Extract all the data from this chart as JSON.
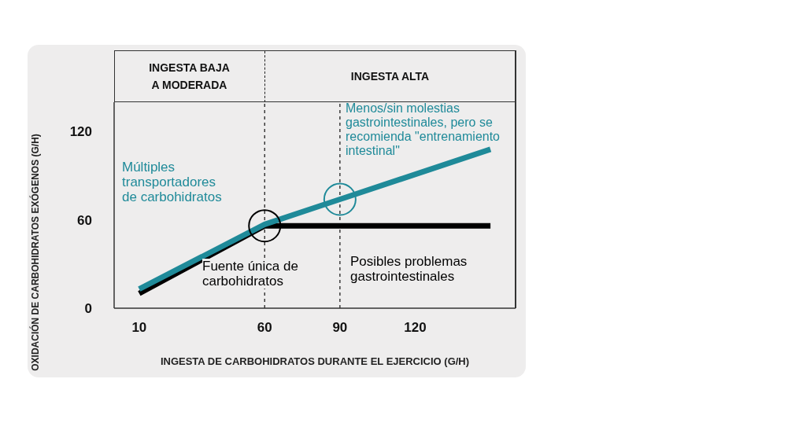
{
  "chart_data": {
    "type": "line",
    "xlabel": "INGESTA DE CARBOHIDRATOS DURANTE EL EJERCICIO (G/H)",
    "ylabel": "OXIDACIÓN DE CARBOHIDRATOS EXÓGENOS (G/H)",
    "xlim": [
      0,
      160
    ],
    "xticks": [
      10,
      60,
      90,
      120
    ],
    "ylim": [
      0,
      140
    ],
    "yticks": [
      0,
      60,
      120
    ],
    "series": [
      {
        "color": "#000000",
        "x": [
          10,
          60,
          150
        ],
        "values": [
          10,
          56,
          56
        ]
      },
      {
        "color": "#1f8a99",
        "x": [
          10,
          60,
          90,
          150
        ],
        "values": [
          13,
          57,
          74,
          108
        ]
      }
    ],
    "ref_lines": [
      {
        "axis": "x",
        "value": 60,
        "line_style": "dashed"
      },
      {
        "axis": "x",
        "value": 90,
        "line_style": "dashed"
      }
    ],
    "annotations": [
      "INGESTA BAJA\nA MODERADA",
      "INGESTA ALTA",
      "Múltiples\ntransportadores\nde carbohidratos",
      "Menos/sin molestias\ngastrointestinales, pero se\nrecomienda \"entrenamiento\nintestinal\"",
      "Fuente única de\ncarbohidratos",
      "Posibles problemas\ngastrointestinales"
    ],
    "marker": "none",
    "line_style": "solid",
    "grid": false
  }
}
